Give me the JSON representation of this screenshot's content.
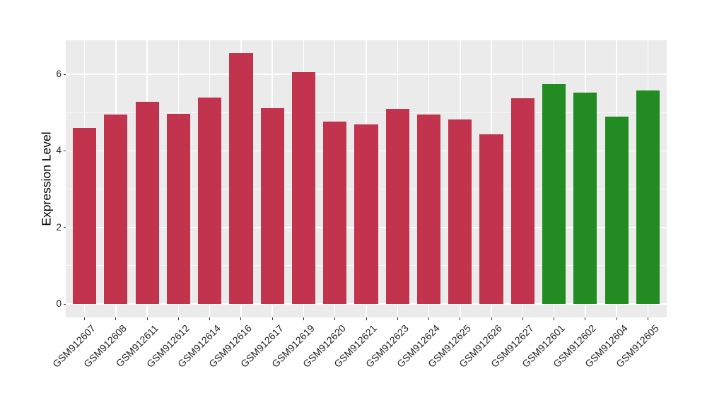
{
  "chart_data": {
    "type": "bar",
    "title": "",
    "xlabel": "",
    "ylabel": "Expression Level",
    "categories": [
      "GSM912607",
      "GSM912608",
      "GSM912611",
      "GSM912612",
      "GSM912614",
      "GSM912616",
      "GSM912617",
      "GSM912619",
      "GSM912620",
      "GSM912621",
      "GSM912623",
      "GSM912624",
      "GSM912625",
      "GSM912626",
      "GSM912627",
      "GSM912601",
      "GSM912602",
      "GSM912604",
      "GSM912605"
    ],
    "values": [
      4.6,
      4.95,
      5.28,
      4.97,
      5.4,
      6.56,
      5.11,
      6.06,
      4.77,
      4.69,
      5.09,
      4.95,
      4.83,
      4.44,
      5.37,
      5.74,
      5.53,
      4.89,
      5.57
    ],
    "bar_color_index": [
      0,
      0,
      0,
      0,
      0,
      0,
      0,
      0,
      0,
      0,
      0,
      0,
      0,
      0,
      0,
      1,
      1,
      1,
      1
    ],
    "group_colors": [
      "#C2334D",
      "#228B22"
    ],
    "yticks": [
      0,
      2,
      4,
      6
    ],
    "yticks_minor": [
      1,
      3,
      5
    ],
    "ylim": [
      -0.35,
      6.89
    ],
    "bar_rel_width": 0.75,
    "x_tick_rotation_deg": 45,
    "grid": "on",
    "legend": "none",
    "panel_bg": "#EBEBEB",
    "grid_color": "#FFFFFF",
    "tick_color": "#333333",
    "tick_label_color": "#262626",
    "axis_title_color": "#000000"
  }
}
